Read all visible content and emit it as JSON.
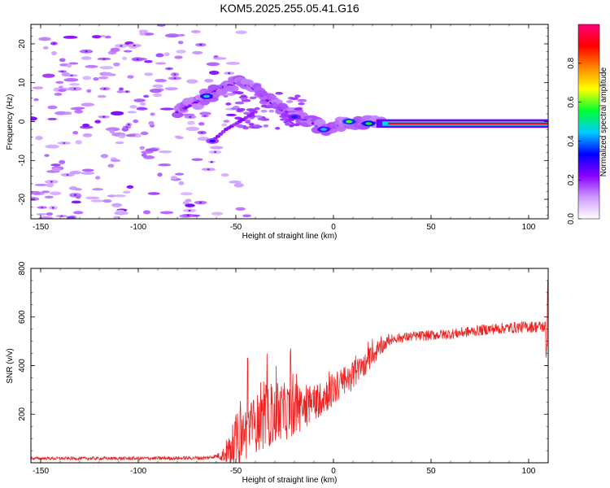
{
  "title": "KOM5.2025.255.05.41.G16",
  "chart_data": [
    {
      "type": "heatmap",
      "xlabel": "Height of straight line (km)",
      "ylabel": "Frequency (Hz)",
      "xlim": [
        -155,
        110
      ],
      "ylim": [
        -25,
        25
      ],
      "xticks": [
        -150,
        -100,
        -50,
        0,
        50,
        100
      ],
      "yticks": [
        -20,
        -10,
        0,
        10,
        20
      ],
      "xtick_labels": [
        "-150",
        "-100",
        "-50",
        "0",
        "50",
        "100"
      ],
      "ytick_labels": [
        "-20",
        "-10",
        "0",
        "10",
        "20"
      ],
      "colorbar": {
        "label": "Normalized spectral amplitude",
        "range": [
          0,
          1
        ],
        "ticks": [
          0.0,
          0.2,
          0.4,
          0.6,
          0.8
        ],
        "tick_labels": [
          "0.0",
          "0.2",
          "0.4",
          "0.6",
          "0.8"
        ],
        "colors": [
          "#ffffff",
          "#cc99ff",
          "#8800ff",
          "#0000ff",
          "#00ccff",
          "#00ff33",
          "#ffff00",
          "#ff8800",
          "#ff0000",
          "#ff0077"
        ]
      },
      "features": {
        "noise_region_x": [
          -155,
          -55
        ],
        "noise_region_y": [
          -25,
          25
        ],
        "arc_points": [
          [
            -80,
            2.5
          ],
          [
            -72,
            4.5
          ],
          [
            -65,
            6.5
          ],
          [
            -58,
            8.5
          ],
          [
            -50,
            10
          ],
          [
            -42,
            9
          ],
          [
            -35,
            6
          ],
          [
            -28,
            3.5
          ],
          [
            -20,
            1.5
          ],
          [
            -12,
            0
          ],
          [
            -4,
            -2
          ],
          [
            3,
            -1
          ],
          [
            8,
            0
          ],
          [
            15,
            -0.5
          ],
          [
            25,
            0
          ]
        ],
        "lower_branch": [
          [
            -62,
            -5
          ],
          [
            -55,
            -2
          ],
          [
            -48,
            0
          ],
          [
            -40,
            2.5
          ]
        ],
        "dc_line": {
          "x_start": 28,
          "x_end": 110,
          "y": -0.5,
          "amplitude": 0.9
        },
        "hotspots": [
          [
            -65,
            6.5,
            0.5
          ],
          [
            -5,
            -2,
            0.45
          ],
          [
            8,
            0,
            0.6
          ],
          [
            18,
            -0.5,
            0.55
          ],
          [
            -20,
            1.2,
            0.35
          ],
          [
            -62,
            -5,
            0.3
          ]
        ]
      }
    },
    {
      "type": "line",
      "xlabel": "Height of straight line (km)",
      "ylabel": "SNR (v/v)",
      "xlim": [
        -155,
        110
      ],
      "ylim": [
        0,
        800
      ],
      "xticks": [
        -150,
        -100,
        -50,
        0,
        50,
        100
      ],
      "yticks": [
        200,
        400,
        600,
        800
      ],
      "xtick_labels": [
        "-150",
        "-100",
        "-50",
        "0",
        "50",
        "100"
      ],
      "ytick_labels": [
        "200",
        "400",
        "600",
        "800"
      ],
      "color": "#ee2222",
      "series": [
        {
          "name": "SNR",
          "baseline": [
            [
              -155,
              18
            ],
            [
              -100,
              18
            ],
            [
              -65,
              20
            ],
            [
              -55,
              35
            ],
            [
              -50,
              90
            ],
            [
              -40,
              160
            ],
            [
              -30,
              200
            ],
            [
              -20,
              220
            ],
            [
              -10,
              250
            ],
            [
              -2,
              290
            ],
            [
              5,
              330
            ],
            [
              10,
              360
            ],
            [
              18,
              420
            ],
            [
              25,
              480
            ],
            [
              30,
              510
            ],
            [
              40,
              520
            ],
            [
              50,
              525
            ],
            [
              60,
              530
            ],
            [
              70,
              540
            ],
            [
              80,
              550
            ],
            [
              90,
              555
            ],
            [
              100,
              560
            ],
            [
              108,
              560
            ]
          ],
          "noise_amp": [
            [
              -155,
              6
            ],
            [
              -60,
              8
            ],
            [
              -55,
              40
            ],
            [
              -50,
              110
            ],
            [
              -40,
              120
            ],
            [
              -30,
              130
            ],
            [
              -20,
              110
            ],
            [
              -10,
              80
            ],
            [
              0,
              70
            ],
            [
              10,
              60
            ],
            [
              20,
              40
            ],
            [
              30,
              20
            ],
            [
              110,
              25
            ]
          ],
          "peaks": [
            [
              -44,
              430
            ],
            [
              -34,
              450
            ],
            [
              -22,
              470
            ],
            [
              -14,
              320
            ]
          ]
        }
      ]
    }
  ]
}
